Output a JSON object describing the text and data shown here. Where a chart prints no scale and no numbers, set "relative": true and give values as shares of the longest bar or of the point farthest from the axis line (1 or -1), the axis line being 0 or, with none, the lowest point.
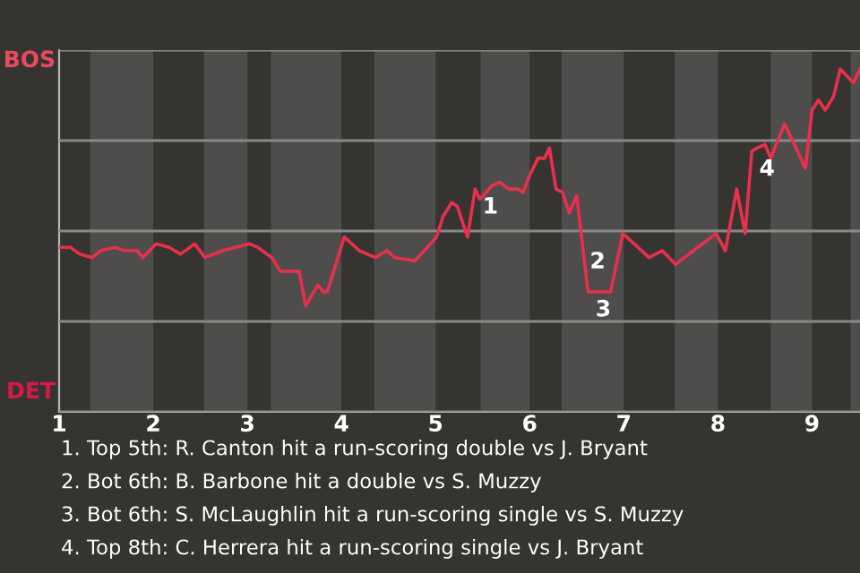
{
  "chart_data": {
    "type": "line",
    "relative": true,
    "x": [
      1.0,
      1.12,
      1.22,
      1.35,
      1.44,
      1.59,
      1.7,
      1.83,
      1.89,
      2.03,
      2.17,
      2.29,
      2.44,
      2.55,
      2.74,
      3.02,
      3.11,
      3.26,
      3.35,
      3.55,
      3.62,
      3.75,
      3.81,
      3.85,
      4.03,
      4.19,
      4.36,
      4.48,
      4.57,
      4.78,
      4.88,
      5.01,
      5.08,
      5.17,
      5.23,
      5.34,
      5.42,
      5.47,
      5.6,
      5.68,
      5.78,
      5.88,
      5.93,
      6.0,
      6.09,
      6.16,
      6.21,
      6.28,
      6.35,
      6.42,
      6.5,
      6.56,
      6.62,
      6.86,
      6.99,
      7.27,
      7.41,
      7.55,
      7.74,
      7.98,
      8.08,
      8.2,
      8.29,
      8.36,
      8.42,
      8.5,
      8.56,
      8.71,
      8.93,
      9.0,
      9.07,
      9.14,
      9.23,
      9.3,
      9.37,
      9.44,
      9.51
    ],
    "series": [
      {
        "color": "#e8304a",
        "values": [
          0.48,
          0.48,
          0.46,
          0.45,
          0.47,
          0.48,
          0.47,
          0.47,
          0.45,
          0.49,
          0.48,
          0.46,
          0.49,
          0.45,
          0.47,
          0.49,
          0.48,
          0.45,
          0.41,
          0.41,
          0.31,
          0.37,
          0.35,
          0.35,
          0.51,
          0.47,
          0.45,
          0.47,
          0.45,
          0.44,
          0.47,
          0.51,
          0.57,
          0.61,
          0.6,
          0.51,
          0.65,
          0.62,
          0.66,
          0.67,
          0.65,
          0.65,
          0.64,
          0.69,
          0.74,
          0.74,
          0.77,
          0.65,
          0.64,
          0.58,
          0.63,
          0.49,
          0.35,
          0.35,
          0.52,
          0.45,
          0.47,
          0.43,
          0.47,
          0.52,
          0.47,
          0.65,
          0.52,
          0.76,
          0.77,
          0.78,
          0.74,
          0.84,
          0.71,
          0.88,
          0.91,
          0.88,
          0.92,
          1,
          0.98,
          0.96,
          1
        ]
      }
    ],
    "xlim": [
      1,
      9.51
    ],
    "xticks": [
      1,
      2,
      3,
      4,
      5,
      6,
      7,
      8,
      9
    ],
    "grid": "y",
    "line_style": "solid",
    "bands": [
      {
        "axis": "x",
        "from": 1.33,
        "to": 2,
        "color": "#4e4d4b"
      },
      {
        "axis": "x",
        "from": 2.54,
        "to": 3,
        "color": "#4e4d4b"
      },
      {
        "axis": "x",
        "from": 3.25,
        "to": 4,
        "color": "#4e4d4b"
      },
      {
        "axis": "x",
        "from": 4.35,
        "to": 5,
        "color": "#4e4d4b"
      },
      {
        "axis": "x",
        "from": 5.48,
        "to": 6,
        "color": "#4e4d4b"
      },
      {
        "axis": "x",
        "from": 6.34,
        "to": 7,
        "color": "#4e4d4b"
      },
      {
        "axis": "x",
        "from": 7.54,
        "to": 8,
        "color": "#4e4d4b"
      },
      {
        "axis": "x",
        "from": 8.56,
        "to": 9,
        "color": "#4e4d4b"
      },
      {
        "axis": "x",
        "from": 9.41,
        "to": 9.51,
        "color": "#4e4d4b"
      }
    ],
    "annotations": [
      "BOS",
      "DET",
      {
        "text": "1",
        "x": 5.42,
        "y": 0.65
      },
      {
        "text": "2",
        "x": 6.56,
        "y": 0.49
      },
      {
        "text": "3",
        "x": 6.62,
        "y": 0.35
      },
      {
        "text": "4",
        "x": 8.36,
        "y": 0.76
      },
      "1. Top 5th: R. Canton hit a run-scoring double vs J. Bryant",
      "2. Bot 6th: B. Barbone hit a double vs S. Muzzy",
      "3. Bot 6th: S. McLaughlin hit a run-scoring single vs S. Muzzy",
      "4. Top 8th: C. Herrera hit a run-scoring single vs J. Bryant"
    ]
  }
}
